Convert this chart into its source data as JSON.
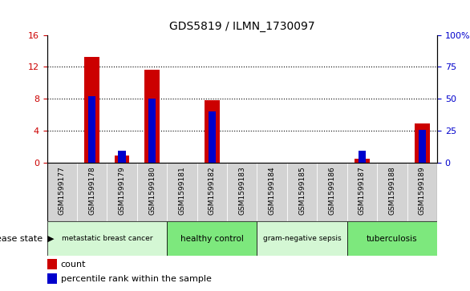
{
  "title": "GDS5819 / ILMN_1730097",
  "samples": [
    "GSM1599177",
    "GSM1599178",
    "GSM1599179",
    "GSM1599180",
    "GSM1599181",
    "GSM1599182",
    "GSM1599183",
    "GSM1599184",
    "GSM1599185",
    "GSM1599186",
    "GSM1599187",
    "GSM1599188",
    "GSM1599189"
  ],
  "counts": [
    0.0,
    13.3,
    0.9,
    11.6,
    0.0,
    7.85,
    0.0,
    0.0,
    0.0,
    0.0,
    0.5,
    0.0,
    4.9
  ],
  "percentiles_pct": [
    0.0,
    52.0,
    9.5,
    50.0,
    0.0,
    40.0,
    0.0,
    0.0,
    0.0,
    0.0,
    9.5,
    0.0,
    26.0
  ],
  "ylim_left": [
    0,
    16
  ],
  "ylim_right": [
    0,
    100
  ],
  "yticks_left": [
    0,
    4,
    8,
    12,
    16
  ],
  "yticks_right": [
    0,
    25,
    50,
    75,
    100
  ],
  "ytick_labels_right": [
    "0",
    "25",
    "50",
    "75",
    "100%"
  ],
  "bar_color": "#cc0000",
  "dot_color": "#0000cc",
  "disease_groups": [
    {
      "label": "metastatic breast cancer",
      "start": 0,
      "end": 4,
      "color": "#d4f7d4"
    },
    {
      "label": "healthy control",
      "start": 4,
      "end": 7,
      "color": "#7de87d"
    },
    {
      "label": "gram-negative sepsis",
      "start": 7,
      "end": 10,
      "color": "#d4f7d4"
    },
    {
      "label": "tuberculosis",
      "start": 10,
      "end": 13,
      "color": "#7de87d"
    }
  ],
  "disease_state_label": "disease state",
  "legend_count_label": "count",
  "legend_percentile_label": "percentile rank within the sample",
  "tick_label_color_left": "#cc0000",
  "tick_label_color_right": "#0000cc",
  "xtick_bg_color": "#d3d3d3",
  "bar_width": 0.5,
  "blue_bar_width": 0.25
}
